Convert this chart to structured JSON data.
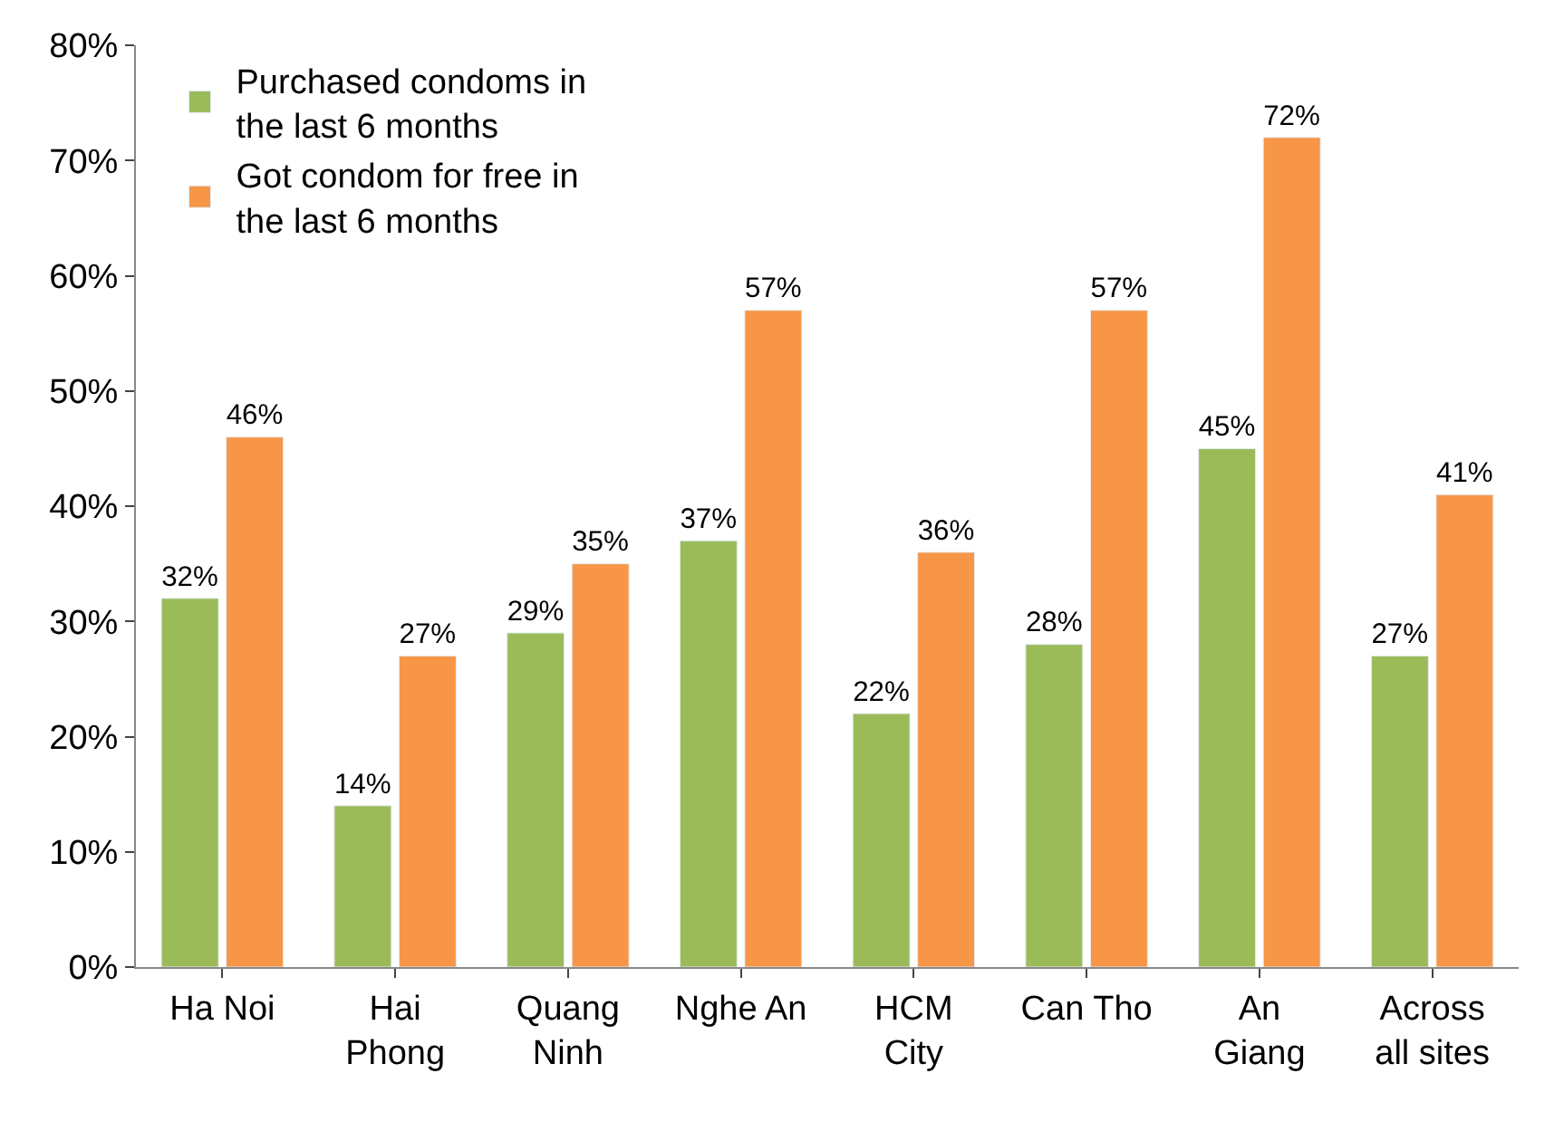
{
  "chart_data": {
    "type": "bar",
    "categories": [
      "Ha Noi",
      "Hai\nPhong",
      "Quang\nNinh",
      "Nghe An",
      "HCM\nCity",
      "Can Tho",
      "An\nGiang",
      "Across\nall sites"
    ],
    "series": [
      {
        "name": "Purchased condoms in\nthe last 6 months",
        "color": "#9bbb59",
        "values": [
          32,
          14,
          29,
          37,
          22,
          28,
          45,
          27
        ],
        "value_labels": [
          "32%",
          "14%",
          "29%",
          "37%",
          "22%",
          "28%",
          "45%",
          "27%"
        ]
      },
      {
        "name": "Got condom for free in\nthe last 6 months",
        "color": "#f79646",
        "values": [
          46,
          27,
          35,
          57,
          36,
          57,
          72,
          41
        ],
        "value_labels": [
          "46%",
          "27%",
          "35%",
          "57%",
          "36%",
          "57%",
          "72%",
          "41%"
        ]
      }
    ],
    "ylim": [
      0,
      80
    ],
    "yticks": [
      {
        "value": 0,
        "label": "0%"
      },
      {
        "value": 10,
        "label": "10%"
      },
      {
        "value": 20,
        "label": "20%"
      },
      {
        "value": 30,
        "label": "30%"
      },
      {
        "value": 40,
        "label": "40%"
      },
      {
        "value": 50,
        "label": "50%"
      },
      {
        "value": 60,
        "label": "60%"
      },
      {
        "value": 70,
        "label": "70%"
      },
      {
        "value": 80,
        "label": "80%"
      }
    ],
    "legend": "top left"
  }
}
